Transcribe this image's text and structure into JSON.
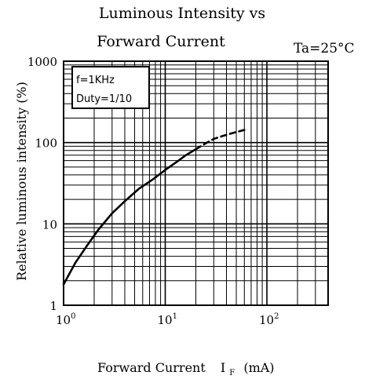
{
  "chart_data": {
    "type": "line",
    "title": [
      "Luminous Intensity vs",
      "Forward Current"
    ],
    "condition": "Ta=25°C",
    "xlabel": "Forward Current",
    "xlabel_symbol": "I",
    "xlabel_subscript": "F",
    "xlabel_unit": "(mA)",
    "ylabel": "Relative luminous intensity (%)",
    "x_scale": "log",
    "y_scale": "log",
    "xlim": [
      1,
      400
    ],
    "ylim": [
      1,
      1000
    ],
    "x_ticks": [
      {
        "base": "10",
        "exp": "0",
        "value": 1
      },
      {
        "base": "10",
        "exp": "1",
        "value": 10
      },
      {
        "base": "10",
        "exp": "2",
        "value": 100
      }
    ],
    "y_ticks": [
      {
        "label": "1",
        "value": 1
      },
      {
        "label": "10",
        "value": 10
      },
      {
        "label": "100",
        "value": 100
      },
      {
        "label": "1000",
        "value": 1000
      }
    ],
    "grid": true,
    "annotation_lines": [
      "f=1KHz",
      "Duty=1/10"
    ],
    "series": [
      {
        "style": "solid",
        "x": [
          1.0,
          1.3,
          1.7,
          2.2,
          3.0,
          4.0,
          5.5,
          7.5,
          10,
          13,
          16,
          20
        ],
        "y": [
          1.8,
          3.3,
          5.4,
          8.5,
          13.5,
          19,
          27,
          35,
          46,
          58,
          70,
          83
        ]
      },
      {
        "style": "dashed",
        "x": [
          20,
          25,
          30,
          38,
          47,
          60
        ],
        "y": [
          83,
          98,
          111,
          122,
          132,
          143
        ]
      }
    ],
    "colors": {
      "axis": "#000000",
      "grid": "#000000",
      "curve": "#000000",
      "background": "#ffffff"
    }
  }
}
